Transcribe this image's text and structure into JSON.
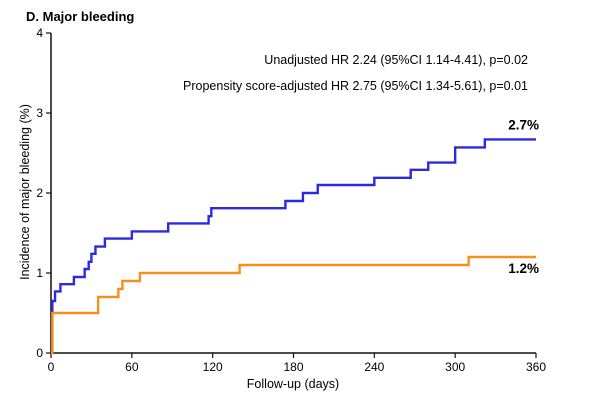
{
  "chart_data": {
    "type": "line",
    "title": "D. Major bleeding",
    "xlabel": "Follow-up (days)",
    "ylabel": "Incidence of major bleeding (%)",
    "xlim": [
      0,
      360
    ],
    "ylim": [
      0,
      4
    ],
    "xticks": [
      0,
      60,
      120,
      180,
      240,
      300,
      360
    ],
    "yticks": [
      0,
      1,
      2,
      3,
      4
    ],
    "grid": false,
    "step": true,
    "annotations": [
      "Unadjusted HR 2.24 (95%CI 1.14-4.41), p=0.02",
      "Propensity score-adjusted HR 2.75 (95%CI 1.34-5.61), p=0.01"
    ],
    "series": [
      {
        "color": "#2b2bdd",
        "end_label": "2.7%",
        "x": [
          0,
          1,
          3,
          7,
          17,
          25,
          28,
          30,
          33,
          40,
          60,
          87,
          117,
          119,
          174,
          187,
          198,
          240,
          267,
          280,
          300,
          322,
          360
        ],
        "y": [
          0,
          0.65,
          0.77,
          0.86,
          0.95,
          1.05,
          1.14,
          1.24,
          1.33,
          1.43,
          1.52,
          1.62,
          1.71,
          1.81,
          1.9,
          2.0,
          2.1,
          2.19,
          2.29,
          2.38,
          2.57,
          2.67,
          2.67
        ]
      },
      {
        "color": "#f5901e",
        "end_label": "1.2%",
        "x": [
          0,
          1,
          35,
          50,
          53,
          66,
          140,
          310,
          360
        ],
        "y": [
          0,
          0.5,
          0.7,
          0.8,
          0.9,
          1.0,
          1.1,
          1.2,
          1.2
        ]
      }
    ]
  }
}
